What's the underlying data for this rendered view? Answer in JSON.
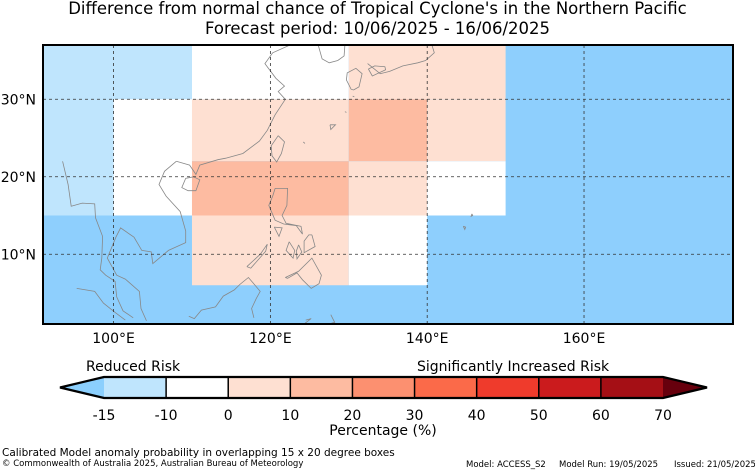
{
  "title_line1": "Difference from normal chance of Tropical Cyclone's in the Northern Pacific",
  "title_line2": "Forecast period: 10/06/2025 - 16/06/2025",
  "map": {
    "lon_range": [
      91,
      179
    ],
    "lat_range": [
      1,
      37
    ],
    "lat_tick_labels": [
      "10°N",
      "20°N",
      "30°N"
    ],
    "lat_ticks": [
      10,
      20,
      30
    ],
    "lon_tick_labels": [
      "100°E",
      "120°E",
      "140°E",
      "160°E"
    ],
    "lon_ticks": [
      100,
      120,
      140,
      160
    ],
    "gridlines": "dashed",
    "background_bin": "-15 to -10",
    "cells": [
      {
        "lon": [
          110,
          130
        ],
        "lat": [
          30,
          37
        ],
        "bin": "-10 to 0"
      },
      {
        "lon": [
          130,
          150
        ],
        "lat": [
          30,
          37
        ],
        "bin": "0 to 10"
      },
      {
        "lon": [
          100,
          110
        ],
        "lat": [
          15,
          30
        ],
        "bin": "-10 to 0"
      },
      {
        "lon": [
          110,
          130
        ],
        "lat": [
          22,
          30
        ],
        "bin": "0 to 10"
      },
      {
        "lon": [
          130,
          140
        ],
        "lat": [
          22,
          30
        ],
        "bin": "10 to 20"
      },
      {
        "lon": [
          140,
          150
        ],
        "lat": [
          22,
          30
        ],
        "bin": "0 to 10"
      },
      {
        "lon": [
          110,
          130
        ],
        "lat": [
          15,
          22
        ],
        "bin": "10 to 20"
      },
      {
        "lon": [
          130,
          140
        ],
        "lat": [
          15,
          22
        ],
        "bin": "0 to 10"
      },
      {
        "lon": [
          140,
          150
        ],
        "lat": [
          15,
          22
        ],
        "bin": "-10 to 0"
      },
      {
        "lon": [
          110,
          130
        ],
        "lat": [
          6,
          15
        ],
        "bin": "0 to 10"
      },
      {
        "lon": [
          130,
          140
        ],
        "lat": [
          6,
          15
        ],
        "bin": "-10 to 0"
      }
    ]
  },
  "legend": {
    "left_label": "Reduced Risk",
    "right_label": "Significantly Increased Risk",
    "bins": [
      {
        "range": "-15 to -10",
        "color": "#bfe5fd"
      },
      {
        "range": "-10 to 0",
        "color": "#ffffff"
      },
      {
        "range": "0 to 10",
        "color": "#fee0d2"
      },
      {
        "range": "10 to 20",
        "color": "#fdbba1"
      },
      {
        "range": "20 to 30",
        "color": "#fc9070"
      },
      {
        "range": "30 to 40",
        "color": "#fb6a49"
      },
      {
        "range": "40 to 50",
        "color": "#ef3b2c"
      },
      {
        "range": "50 to 60",
        "color": "#cb1b1d"
      },
      {
        "range": "60 to 70",
        "color": "#a50f15"
      }
    ],
    "under_color": "#8bcffd",
    "over_color": "#67000d",
    "tick_labels": [
      "-15",
      "-10",
      "0",
      "10",
      "20",
      "30",
      "40",
      "50",
      "60",
      "70"
    ],
    "axis_label": "Percentage (%)"
  },
  "footer": {
    "note": "Calibrated Model anomaly probability in overlapping 15 x 20 degree boxes",
    "copyright": "© Commonwealth of Australia 2025, Australian Bureau of Meteorology",
    "model": "Model: ACCESS_S2",
    "model_run": "Model Run: 19/05/2025",
    "issued": "Issued: 21/05/2025"
  },
  "colors": {
    "ocean_background": "#8ecffd",
    "land_outline": "#888888"
  }
}
